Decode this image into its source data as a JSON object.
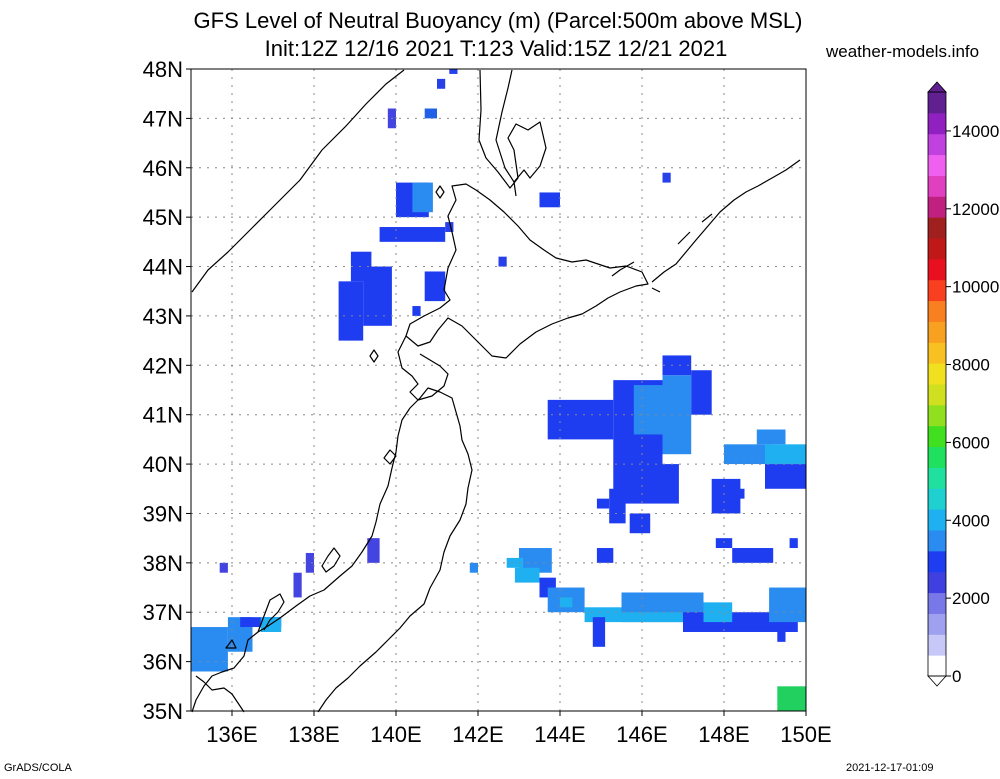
{
  "header": {
    "title_line1": "GFS Level of Neutral Buoyancy (m) (Parcel:500m above MSL)",
    "title_line2": "Init:12Z 12/16 2021 T:123 Valid:15Z 12/21 2021",
    "site": "weather-models.info"
  },
  "map": {
    "lon_range": [
      135,
      150
    ],
    "lat_range": [
      35,
      48
    ],
    "lon_ticks": [
      136,
      138,
      140,
      142,
      144,
      146,
      148,
      150
    ],
    "lat_ticks": [
      35,
      36,
      37,
      38,
      39,
      40,
      41,
      42,
      43,
      44,
      45,
      46,
      47,
      48
    ],
    "lon_labels": [
      "136E",
      "138E",
      "140E",
      "142E",
      "144E",
      "146E",
      "148E",
      "150E"
    ],
    "lat_labels": [
      "35N",
      "36N",
      "37N",
      "38N",
      "39N",
      "40N",
      "41N",
      "42N",
      "43N",
      "44N",
      "45N",
      "46N",
      "47N",
      "48N"
    ],
    "gridlines": "dotted",
    "coastline_color": "#000000",
    "field_cells": [
      {
        "lon": 141.3,
        "lat": 47.9,
        "lon2": 141.5,
        "lat2": 48.0,
        "color": "#2840e8"
      },
      {
        "lon": 141.0,
        "lat": 47.6,
        "lon2": 141.2,
        "lat2": 47.8,
        "color": "#2840e8"
      },
      {
        "lon": 139.8,
        "lat": 46.8,
        "lon2": 140.0,
        "lat2": 47.2,
        "color": "#4444e0"
      },
      {
        "lon": 140.7,
        "lat": 47.0,
        "lon2": 141.0,
        "lat2": 47.2,
        "color": "#2060e8"
      },
      {
        "lon": 146.5,
        "lat": 45.7,
        "lon2": 146.7,
        "lat2": 45.9,
        "color": "#2840e8"
      },
      {
        "lon": 143.5,
        "lat": 45.2,
        "lon2": 144.0,
        "lat2": 45.5,
        "color": "#1e3cf0"
      },
      {
        "lon": 140.0,
        "lat": 45.0,
        "lon2": 140.8,
        "lat2": 45.7,
        "color": "#1e3cf0"
      },
      {
        "lon": 139.6,
        "lat": 44.5,
        "lon2": 141.2,
        "lat2": 44.8,
        "color": "#1e3cf0"
      },
      {
        "lon": 140.4,
        "lat": 45.1,
        "lon2": 140.9,
        "lat2": 45.7,
        "color": "#2a8cf0"
      },
      {
        "lon": 141.2,
        "lat": 44.7,
        "lon2": 141.4,
        "lat2": 44.9,
        "color": "#2840e8"
      },
      {
        "lon": 142.5,
        "lat": 44.0,
        "lon2": 142.7,
        "lat2": 44.2,
        "color": "#2840e8"
      },
      {
        "lon": 138.9,
        "lat": 43.7,
        "lon2": 139.4,
        "lat2": 44.3,
        "color": "#1e3cf0"
      },
      {
        "lon": 138.6,
        "lat": 42.5,
        "lon2": 139.2,
        "lat2": 43.7,
        "color": "#1e3cf0"
      },
      {
        "lon": 139.2,
        "lat": 42.8,
        "lon2": 139.9,
        "lat2": 44.0,
        "color": "#1e3cf0"
      },
      {
        "lon": 140.7,
        "lat": 43.3,
        "lon2": 141.2,
        "lat2": 43.9,
        "color": "#1e3cf0"
      },
      {
        "lon": 140.4,
        "lat": 43.0,
        "lon2": 140.6,
        "lat2": 43.2,
        "color": "#1e3cf0"
      },
      {
        "lon": 143.7,
        "lat": 40.5,
        "lon2": 145.3,
        "lat2": 41.3,
        "color": "#1e3cf0"
      },
      {
        "lon": 145.3,
        "lat": 39.4,
        "lon2": 146.5,
        "lat2": 41.7,
        "color": "#1e3cf0"
      },
      {
        "lon": 146.5,
        "lat": 40.2,
        "lon2": 147.2,
        "lat2": 41.8,
        "color": "#2a8cf0"
      },
      {
        "lon": 146.5,
        "lat": 41.8,
        "lon2": 147.2,
        "lat2": 42.2,
        "color": "#1e3cf0"
      },
      {
        "lon": 147.2,
        "lat": 41.0,
        "lon2": 147.7,
        "lat2": 41.9,
        "color": "#1e3cf0"
      },
      {
        "lon": 145.8,
        "lat": 40.6,
        "lon2": 146.7,
        "lat2": 41.6,
        "color": "#2a8cf0"
      },
      {
        "lon": 145.5,
        "lat": 39.2,
        "lon2": 146.9,
        "lat2": 40.0,
        "color": "#1e3cf0"
      },
      {
        "lon": 145.2,
        "lat": 38.8,
        "lon2": 145.6,
        "lat2": 39.5,
        "color": "#1e3cf0"
      },
      {
        "lon": 144.9,
        "lat": 39.1,
        "lon2": 145.2,
        "lat2": 39.3,
        "color": "#1e3cf0"
      },
      {
        "lon": 145.7,
        "lat": 38.6,
        "lon2": 146.2,
        "lat2": 39.0,
        "color": "#1e3cf0"
      },
      {
        "lon": 144.9,
        "lat": 38.0,
        "lon2": 145.3,
        "lat2": 38.3,
        "color": "#1e3cf0"
      },
      {
        "lon": 147.7,
        "lat": 39.0,
        "lon2": 148.4,
        "lat2": 39.7,
        "color": "#1e3cf0"
      },
      {
        "lon": 148.2,
        "lat": 39.3,
        "lon2": 148.5,
        "lat2": 39.5,
        "color": "#1e3cf0"
      },
      {
        "lon": 148.0,
        "lat": 40.0,
        "lon2": 149.2,
        "lat2": 40.4,
        "color": "#2a8cf0"
      },
      {
        "lon": 149.0,
        "lat": 40.0,
        "lon2": 150.0,
        "lat2": 40.4,
        "color": "#1eb0f0"
      },
      {
        "lon": 149.0,
        "lat": 39.5,
        "lon2": 150.0,
        "lat2": 40.0,
        "color": "#1e3cf0"
      },
      {
        "lon": 148.8,
        "lat": 40.4,
        "lon2": 149.5,
        "lat2": 40.7,
        "color": "#2a8cf0"
      },
      {
        "lon": 147.8,
        "lat": 38.3,
        "lon2": 148.2,
        "lat2": 38.5,
        "color": "#1e3cf0"
      },
      {
        "lon": 148.2,
        "lat": 38.0,
        "lon2": 149.2,
        "lat2": 38.3,
        "color": "#1e3cf0"
      },
      {
        "lon": 149.6,
        "lat": 38.3,
        "lon2": 149.8,
        "lat2": 38.5,
        "color": "#1e3cf0"
      },
      {
        "lon": 143.0,
        "lat": 37.8,
        "lon2": 143.8,
        "lat2": 38.3,
        "color": "#2a8cf0"
      },
      {
        "lon": 142.9,
        "lat": 37.6,
        "lon2": 143.5,
        "lat2": 37.9,
        "color": "#1eb0f0"
      },
      {
        "lon": 143.5,
        "lat": 37.3,
        "lon2": 143.9,
        "lat2": 37.7,
        "color": "#1e3cf0"
      },
      {
        "lon": 143.7,
        "lat": 37.0,
        "lon2": 144.6,
        "lat2": 37.5,
        "color": "#2a8cf0"
      },
      {
        "lon": 144.0,
        "lat": 37.1,
        "lon2": 144.3,
        "lat2": 37.3,
        "color": "#1eb0f0"
      },
      {
        "lon": 144.6,
        "lat": 36.8,
        "lon2": 145.5,
        "lat2": 37.1,
        "color": "#1eb0f0"
      },
      {
        "lon": 144.8,
        "lat": 36.3,
        "lon2": 145.1,
        "lat2": 36.9,
        "color": "#1e3cf0"
      },
      {
        "lon": 145.5,
        "lat": 36.8,
        "lon2": 147.5,
        "lat2": 37.4,
        "color": "#2a8cf0"
      },
      {
        "lon": 145.5,
        "lat": 36.8,
        "lon2": 147.0,
        "lat2": 37.0,
        "color": "#1eb0f0"
      },
      {
        "lon": 147.0,
        "lat": 36.6,
        "lon2": 149.8,
        "lat2": 37.0,
        "color": "#1e3cf0"
      },
      {
        "lon": 147.5,
        "lat": 36.8,
        "lon2": 148.2,
        "lat2": 37.2,
        "color": "#1eb0f0"
      },
      {
        "lon": 149.1,
        "lat": 36.8,
        "lon2": 150.0,
        "lat2": 37.5,
        "color": "#2a8cf0"
      },
      {
        "lon": 149.3,
        "lat": 36.4,
        "lon2": 149.5,
        "lat2": 36.6,
        "color": "#1e3cf0"
      },
      {
        "lon": 142.7,
        "lat": 37.9,
        "lon2": 143.1,
        "lat2": 38.1,
        "color": "#1eb0f0"
      },
      {
        "lon": 141.8,
        "lat": 37.8,
        "lon2": 142.0,
        "lat2": 38.0,
        "color": "#2a8cf0"
      },
      {
        "lon": 139.3,
        "lat": 38.0,
        "lon2": 139.6,
        "lat2": 38.5,
        "color": "#4444e0"
      },
      {
        "lon": 137.8,
        "lat": 37.8,
        "lon2": 138.0,
        "lat2": 38.2,
        "color": "#4444e0"
      },
      {
        "lon": 137.5,
        "lat": 37.3,
        "lon2": 137.7,
        "lat2": 37.8,
        "color": "#4444e0"
      },
      {
        "lon": 135.7,
        "lat": 37.8,
        "lon2": 135.9,
        "lat2": 38.0,
        "color": "#4444e0"
      },
      {
        "lon": 135.0,
        "lat": 35.8,
        "lon2": 135.9,
        "lat2": 36.7,
        "color": "#2a8cf0"
      },
      {
        "lon": 135.9,
        "lat": 36.2,
        "lon2": 136.5,
        "lat2": 36.9,
        "color": "#2a8cf0"
      },
      {
        "lon": 136.2,
        "lat": 36.7,
        "lon2": 137.2,
        "lat2": 36.9,
        "color": "#1e3cf0"
      },
      {
        "lon": 136.7,
        "lat": 36.6,
        "lon2": 137.2,
        "lat2": 36.9,
        "color": "#1eb0f0"
      },
      {
        "lon": 149.3,
        "lat": 35.0,
        "lon2": 150.0,
        "lat2": 35.5,
        "color": "#22d060"
      }
    ]
  },
  "colorbar": {
    "levels": [
      0,
      2000,
      4000,
      6000,
      8000,
      10000,
      12000,
      14000
    ],
    "labels": [
      "0",
      "2000",
      "4000",
      "6000",
      "8000",
      "10000",
      "12000",
      "14000"
    ],
    "min": 0,
    "max": 15000,
    "colors": [
      "#ffffff",
      "#c8c8f8",
      "#a0a0f0",
      "#7878e8",
      "#4040e0",
      "#1e3cf0",
      "#2a8cf0",
      "#1eb0f0",
      "#20d0d0",
      "#20e0a0",
      "#20e060",
      "#40e020",
      "#90e020",
      "#d0e020",
      "#f0e020",
      "#f8c020",
      "#f8a020",
      "#f88020",
      "#f84020",
      "#e81020",
      "#c01818",
      "#a02020",
      "#c02080",
      "#e040c0",
      "#f060f0",
      "#c040e0",
      "#9020c0",
      "#602090"
    ]
  },
  "footer": {
    "left": "GrADS/COLA",
    "right": "2021-12-17-01:09"
  }
}
